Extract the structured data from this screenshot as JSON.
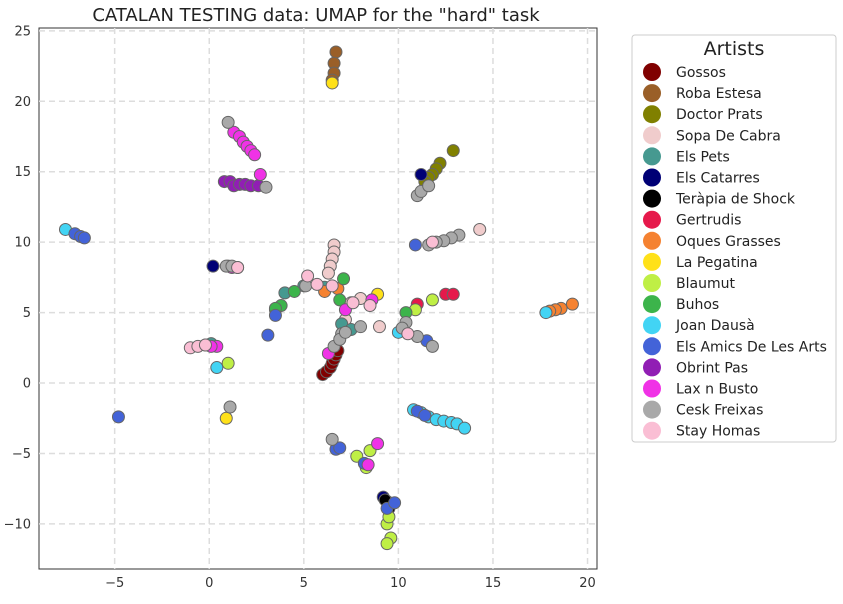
{
  "chart_data": {
    "type": "scatter",
    "title": "CATALAN TESTING data: UMAP for the \"hard\" task",
    "xlabel": "",
    "ylabel": "",
    "xlim": [
      -9.0,
      20.5
    ],
    "ylim": [
      -13.2,
      25.2
    ],
    "xticks": [
      -5,
      0,
      5,
      10,
      15,
      20
    ],
    "yticks": [
      -10,
      -5,
      0,
      5,
      10,
      15,
      20,
      25
    ],
    "grid": true,
    "legend": {
      "title": "Artists",
      "placement": "right, outside"
    },
    "series": [
      {
        "name": "Gossos",
        "color": "#800000",
        "points": [
          [
            6.0,
            0.6
          ],
          [
            6.2,
            0.8
          ],
          [
            6.4,
            1.1
          ],
          [
            6.5,
            1.4
          ],
          [
            6.6,
            1.7
          ],
          [
            6.7,
            2.0
          ],
          [
            6.8,
            2.3
          ]
        ]
      },
      {
        "name": "Roba Estesa",
        "color": "#9a5f28",
        "points": [
          [
            6.7,
            23.5
          ],
          [
            6.6,
            22.7
          ],
          [
            6.6,
            22.0
          ],
          [
            6.5,
            21.5
          ]
        ]
      },
      {
        "name": "Doctor Prats",
        "color": "#808000",
        "points": [
          [
            12.9,
            16.5
          ],
          [
            12.2,
            15.6
          ],
          [
            12.0,
            15.2
          ],
          [
            11.8,
            14.8
          ],
          [
            11.6,
            14.6
          ],
          [
            11.4,
            14.3
          ]
        ]
      },
      {
        "name": "Sopa De Cabra",
        "color": "#f0cccc",
        "points": [
          [
            14.3,
            10.9
          ],
          [
            6.6,
            9.8
          ],
          [
            6.6,
            9.3
          ],
          [
            6.5,
            8.8
          ],
          [
            6.4,
            8.3
          ],
          [
            6.3,
            7.8
          ],
          [
            7.5,
            5.7
          ],
          [
            7.2,
            4.5
          ],
          [
            9.0,
            4.0
          ],
          [
            8.0,
            6.0
          ]
        ]
      },
      {
        "name": "Els Pets",
        "color": "#469990",
        "points": [
          [
            4.0,
            6.4
          ],
          [
            5.0,
            6.9
          ],
          [
            6.1,
            6.8
          ],
          [
            0.1,
            2.8
          ],
          [
            -0.2,
            2.7
          ],
          [
            1.0,
            8.3
          ],
          [
            1.5,
            8.2
          ],
          [
            3.5,
            5.2
          ],
          [
            7.0,
            4.2
          ],
          [
            7.5,
            3.8
          ]
        ]
      },
      {
        "name": "Els Catarres",
        "color": "#000075",
        "points": [
          [
            0.2,
            8.3
          ],
          [
            9.2,
            -8.1
          ],
          [
            9.4,
            -8.4
          ],
          [
            11.2,
            14.8
          ]
        ]
      },
      {
        "name": "Teràpia de Shock",
        "color": "#000000",
        "points": [
          [
            9.3,
            -8.3
          ],
          [
            9.5,
            -8.9
          ]
        ]
      },
      {
        "name": "Gertrudis",
        "color": "#e6194b",
        "points": [
          [
            12.5,
            6.3
          ],
          [
            12.9,
            6.3
          ],
          [
            11.0,
            5.6
          ]
        ]
      },
      {
        "name": "Oques Grasses",
        "color": "#f58231",
        "points": [
          [
            19.2,
            5.6
          ],
          [
            18.6,
            5.3
          ],
          [
            18.3,
            5.2
          ],
          [
            18.0,
            5.1
          ],
          [
            6.1,
            6.5
          ],
          [
            6.8,
            6.7
          ]
        ]
      },
      {
        "name": "La Pegatina",
        "color": "#ffe119",
        "points": [
          [
            6.5,
            21.3
          ],
          [
            0.9,
            -2.5
          ],
          [
            8.9,
            6.3
          ]
        ]
      },
      {
        "name": "Blaumut",
        "color": "#bfef45",
        "points": [
          [
            9.6,
            -11.0
          ],
          [
            9.4,
            -11.4
          ],
          [
            9.4,
            -10.0
          ],
          [
            9.5,
            -9.5
          ],
          [
            7.8,
            -5.2
          ],
          [
            8.5,
            -4.8
          ],
          [
            8.3,
            -6.0
          ],
          [
            11.8,
            5.9
          ],
          [
            10.9,
            5.2
          ],
          [
            1.0,
            1.4
          ]
        ]
      },
      {
        "name": "Buhos",
        "color": "#3cb44b",
        "points": [
          [
            3.8,
            5.5
          ],
          [
            3.5,
            5.3
          ],
          [
            4.5,
            6.5
          ],
          [
            6.9,
            5.9
          ],
          [
            10.4,
            5.0
          ],
          [
            7.1,
            7.4
          ]
        ]
      },
      {
        "name": "Joan Dausà",
        "color": "#42d4f4",
        "points": [
          [
            -7.6,
            10.9
          ],
          [
            17.8,
            5.0
          ],
          [
            0.4,
            1.1
          ],
          [
            10.0,
            3.6
          ],
          [
            11.6,
            -2.4
          ],
          [
            12.0,
            -2.6
          ],
          [
            12.4,
            -2.7
          ],
          [
            12.8,
            -2.8
          ],
          [
            13.1,
            -2.9
          ],
          [
            13.5,
            -3.2
          ],
          [
            10.8,
            -1.9
          ],
          [
            11.2,
            -2.1
          ]
        ]
      },
      {
        "name": "Els Amics De Les Arts",
        "color": "#4363d8",
        "points": [
          [
            -4.8,
            -2.4
          ],
          [
            -7.1,
            10.6
          ],
          [
            -6.8,
            10.4
          ],
          [
            -6.6,
            10.3
          ],
          [
            3.1,
            3.4
          ],
          [
            3.5,
            4.8
          ],
          [
            6.7,
            -4.7
          ],
          [
            6.9,
            -4.6
          ],
          [
            8.2,
            -5.7
          ],
          [
            9.4,
            -8.9
          ],
          [
            10.9,
            9.8
          ],
          [
            11.5,
            3.0
          ],
          [
            11.0,
            -2.0
          ],
          [
            11.4,
            -2.3
          ],
          [
            9.8,
            -8.5
          ]
        ]
      },
      {
        "name": "Obrint Pas",
        "color": "#911eb4",
        "points": [
          [
            0.8,
            14.3
          ],
          [
            1.1,
            14.3
          ],
          [
            1.3,
            14.0
          ],
          [
            1.6,
            14.1
          ],
          [
            1.9,
            14.1
          ],
          [
            2.2,
            14.0
          ],
          [
            2.6,
            14.0
          ]
        ]
      },
      {
        "name": "Lax n Busto",
        "color": "#f032e6",
        "points": [
          [
            1.3,
            17.8
          ],
          [
            1.6,
            17.5
          ],
          [
            1.8,
            17.1
          ],
          [
            2.0,
            16.8
          ],
          [
            2.2,
            16.5
          ],
          [
            2.4,
            16.2
          ],
          [
            2.7,
            14.8
          ],
          [
            0.4,
            2.6
          ],
          [
            0.1,
            2.6
          ],
          [
            6.3,
            2.1
          ],
          [
            7.2,
            5.2
          ],
          [
            8.4,
            -5.8
          ],
          [
            8.9,
            -4.3
          ],
          [
            8.6,
            5.9
          ],
          [
            1.2,
            8.2
          ]
        ]
      },
      {
        "name": "Cesk Freixas",
        "color": "#a9a9a9",
        "points": [
          [
            1.0,
            18.5
          ],
          [
            3.0,
            13.9
          ],
          [
            0.9,
            8.3
          ],
          [
            1.2,
            8.3
          ],
          [
            5.1,
            6.9
          ],
          [
            7.0,
            3.5
          ],
          [
            8.0,
            4.0
          ],
          [
            6.5,
            -4.0
          ],
          [
            1.1,
            -1.7
          ],
          [
            13.2,
            10.5
          ],
          [
            12.8,
            10.3
          ],
          [
            12.4,
            10.1
          ],
          [
            12.0,
            10.0
          ],
          [
            11.6,
            9.8
          ],
          [
            11.0,
            13.3
          ],
          [
            11.2,
            13.6
          ],
          [
            11.6,
            14.0
          ],
          [
            10.4,
            4.3
          ],
          [
            10.2,
            3.9
          ],
          [
            11.0,
            3.3
          ],
          [
            11.8,
            2.6
          ],
          [
            6.6,
            2.6
          ],
          [
            6.9,
            3.1
          ],
          [
            7.2,
            3.6
          ]
        ]
      },
      {
        "name": "Stay Homas",
        "color": "#fabed4",
        "points": [
          [
            -1.0,
            2.5
          ],
          [
            -0.6,
            2.6
          ],
          [
            -0.2,
            2.7
          ],
          [
            1.5,
            8.2
          ],
          [
            5.2,
            7.6
          ],
          [
            5.7,
            7.0
          ],
          [
            6.5,
            6.9
          ],
          [
            7.6,
            5.7
          ],
          [
            8.5,
            5.5
          ],
          [
            10.5,
            3.5
          ],
          [
            11.8,
            10.0
          ]
        ]
      }
    ]
  }
}
